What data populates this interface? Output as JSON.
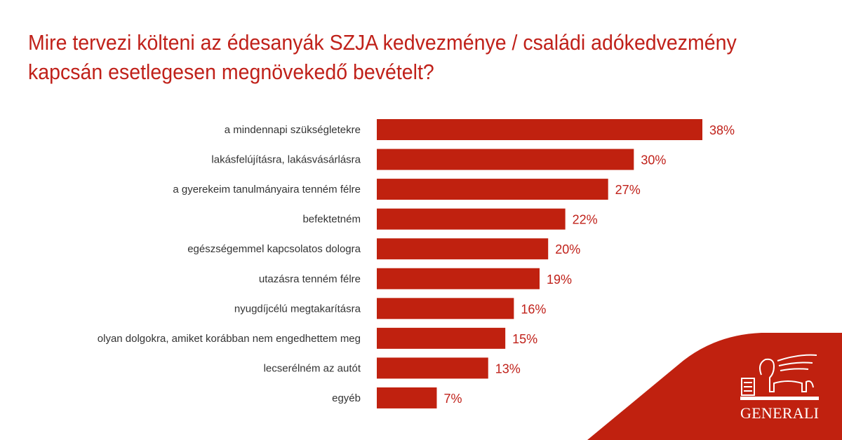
{
  "title_lines": [
    "Mire tervezi költeni az édesanyák SZJA kedvezménye / családi adókedvezmény",
    "kapcsán esetlegesen megnövekedő bevételt?"
  ],
  "brand": {
    "name": "GENERALI",
    "color": "#c0210f"
  },
  "chart_data": {
    "type": "bar",
    "orientation": "horizontal",
    "title": "Mire tervezi költeni az édesanyák SZJA kedvezménye / családi adókedvezmény kapcsán esetlegesen megnövekedő bevételt?",
    "categories": [
      "a mindennapi szükségletekre",
      "lakásfelújításra, lakásvásárlásra",
      "a gyerekeim tanulmányaira tenném félre",
      "befektetném",
      "egészségemmel kapcsolatos dologra",
      "utazásra tenném félre",
      "nyugdíjcélú megtakarításra",
      "olyan dolgokra, amiket korábban nem engedhettem meg",
      "lecserélném az autót",
      "egyéb"
    ],
    "values": [
      38,
      30,
      27,
      22,
      20,
      19,
      16,
      15,
      13,
      7
    ],
    "value_labels": [
      "38%",
      "30%",
      "27%",
      "22%",
      "20%",
      "19%",
      "16%",
      "15%",
      "13%",
      "7%"
    ],
    "unit": "%",
    "xlim": [
      0,
      40
    ],
    "grid": false,
    "bar_color": "#c0210f"
  }
}
